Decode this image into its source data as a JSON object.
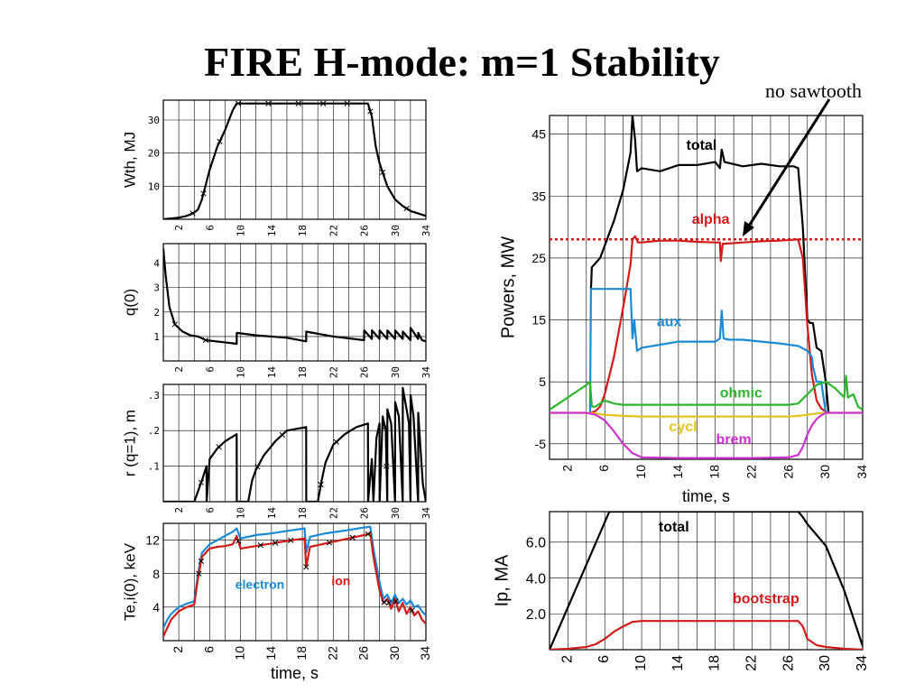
{
  "slide": {
    "title": "FIRE H-mode: m=1 Stability",
    "annotation": "no sawtooth"
  },
  "chart_data": [
    {
      "id": "wth",
      "type": "line",
      "ylabel": "Wth, MJ",
      "xlabel": "",
      "xlim": [
        0,
        34
      ],
      "ylim": [
        0,
        36
      ],
      "xticks": [
        "2",
        "6",
        "10",
        "14",
        "18",
        "22",
        "26",
        "30",
        "34"
      ],
      "yticks": [
        "10",
        "20",
        "30"
      ],
      "grid": true,
      "series": [
        {
          "color": "#000000",
          "x": [
            0,
            2,
            3,
            4,
            4.5,
            5,
            6,
            7,
            8,
            9,
            9.5,
            10,
            12,
            16,
            20,
            24,
            26.5,
            27,
            27.5,
            28,
            29,
            30,
            31,
            32,
            34
          ],
          "y": [
            0,
            0.5,
            1,
            2,
            3,
            6,
            15,
            22,
            27,
            33,
            35,
            35,
            35,
            35,
            35,
            35,
            35,
            31,
            22,
            17,
            10,
            6,
            4,
            2.5,
            1
          ]
        }
      ]
    },
    {
      "id": "q0",
      "type": "line",
      "ylabel": "q(0)",
      "xlabel": "",
      "xlim": [
        0,
        34
      ],
      "ylim": [
        0,
        4.8
      ],
      "xticks": [
        "2",
        "6",
        "10",
        "14",
        "18",
        "22",
        "26",
        "30",
        "34"
      ],
      "yticks": [
        "1",
        "2",
        "3",
        "4"
      ],
      "grid": true,
      "series": [
        {
          "color": "#000000",
          "x": [
            0,
            0.3,
            0.8,
            1.5,
            2.5,
            3.5,
            4.5,
            5.5,
            9.5,
            9.51,
            12,
            16,
            18.5,
            18.51,
            22,
            26,
            26.01,
            27,
            27.01,
            28,
            28.01,
            29,
            29.01,
            30,
            30.01,
            31,
            31.01,
            32,
            32.01,
            33,
            33.01,
            33.5,
            34
          ],
          "y": [
            4.6,
            3.5,
            2.2,
            1.5,
            1.2,
            1.05,
            1.0,
            0.85,
            0.7,
            1.15,
            1.05,
            0.95,
            0.8,
            1.2,
            1.0,
            0.85,
            1.25,
            0.9,
            1.25,
            0.9,
            1.25,
            0.9,
            1.25,
            0.9,
            1.25,
            0.9,
            1.2,
            0.85,
            1.35,
            0.9,
            1.15,
            0.85,
            0.8
          ]
        }
      ]
    },
    {
      "id": "rq1",
      "type": "line",
      "ylabel": "r (q=1), m",
      "xlabel": "",
      "xlim": [
        0,
        34
      ],
      "ylim": [
        0,
        0.33
      ],
      "xticks": [
        "2",
        "6",
        "10",
        "14",
        "18",
        "22",
        "26",
        "30",
        "34"
      ],
      "yticks": [
        ".1",
        ".2",
        ".3"
      ],
      "grid": true,
      "series": [
        {
          "color": "#000000",
          "x": [
            0,
            4,
            4.01,
            5,
            5.6,
            5.61,
            6,
            7,
            8,
            9.5,
            9.51,
            11,
            11.5,
            12,
            13,
            14.5,
            16,
            18.5,
            18.51,
            20,
            20.5,
            21,
            22,
            23.5,
            25,
            26.5,
            26.51,
            27,
            27.2,
            27.6,
            28,
            28.01,
            28.4,
            28.8,
            29,
            29.01,
            29.5,
            30,
            30.01,
            30.5,
            31,
            31.01,
            31.5,
            31.8,
            32,
            32.01,
            32.4,
            33,
            33.01,
            33.3,
            33.6,
            34
          ],
          "y": [
            0,
            0,
            0,
            0.06,
            0.1,
            0,
            0.12,
            0.15,
            0.17,
            0.19,
            0,
            0,
            0.06,
            0.09,
            0.13,
            0.17,
            0.2,
            0.21,
            0,
            0,
            0.06,
            0.11,
            0.16,
            0.19,
            0.21,
            0.22,
            0,
            0.12,
            0,
            0.18,
            0.22,
            0,
            0.24,
            0.2,
            0,
            0.26,
            0.22,
            0,
            0.28,
            0.24,
            0,
            0.32,
            0.26,
            0.22,
            0,
            0.3,
            0.24,
            0,
            0.25,
            0.15,
            0.05,
            0
          ]
        }
      ]
    },
    {
      "id": "te",
      "type": "line",
      "ylabel": "Te,i(0), keV",
      "xlabel": "time, s",
      "xlim": [
        0,
        34
      ],
      "ylim": [
        0,
        14
      ],
      "xticks": [
        "2",
        "6",
        "10",
        "14",
        "18",
        "22",
        "26",
        "30",
        "34"
      ],
      "yticks": [
        "4",
        "8",
        "12"
      ],
      "grid": true,
      "series": [
        {
          "name": "electron",
          "color": "#1a8ad4",
          "x": [
            0,
            0.5,
            1,
            2,
            3,
            4,
            4.5,
            5,
            6,
            7,
            8,
            9,
            9.5,
            10,
            12,
            14,
            16,
            18.3,
            18.5,
            19,
            21,
            24,
            26,
            26.8,
            27.2,
            28,
            28.5,
            29,
            29.5,
            30,
            30.5,
            31,
            31.5,
            32,
            32.5,
            33,
            33.5,
            34
          ],
          "y": [
            1.5,
            2.5,
            3.2,
            4,
            4.4,
            4.7,
            8,
            10.5,
            11.5,
            12,
            12.5,
            13,
            13.4,
            12.2,
            12.6,
            12.8,
            13.1,
            13.4,
            10.5,
            12.4,
            12.8,
            13.2,
            13.5,
            13.6,
            11,
            7,
            5,
            5.5,
            4.5,
            5.5,
            4.5,
            5,
            4.3,
            4.8,
            4,
            4.2,
            3.5,
            3
          ]
        },
        {
          "name": "ion",
          "color": "#d11a1a",
          "x": [
            0,
            0.5,
            1,
            2,
            3,
            4,
            4.5,
            5,
            6,
            7,
            8,
            9,
            9.5,
            10,
            12,
            14,
            16,
            18.3,
            18.5,
            19,
            21,
            24,
            26,
            26.8,
            27.2,
            28,
            28.5,
            29,
            29.5,
            30,
            30.5,
            31,
            31.5,
            32,
            32.5,
            33,
            33.5,
            34
          ],
          "y": [
            0.5,
            1.5,
            2.5,
            3.5,
            4,
            4.3,
            7.5,
            10,
            11,
            11.2,
            11.3,
            11.5,
            12.5,
            11,
            11.3,
            11.6,
            11.9,
            12.2,
            8.8,
            11.2,
            11.6,
            12.2,
            12.6,
            12.8,
            10,
            6,
            4.5,
            5,
            3.8,
            5,
            3.5,
            4.5,
            3.2,
            4,
            3,
            3.5,
            2.5,
            2
          ]
        }
      ]
    },
    {
      "id": "powers",
      "type": "line",
      "ylabel": "Powers, MW",
      "xlabel": "time, s",
      "xlim": [
        0,
        34
      ],
      "ylim": [
        -7.5,
        48
      ],
      "xticks": [
        "2",
        "6",
        "10",
        "14",
        "18",
        "22",
        "26",
        "30",
        "34"
      ],
      "yticks": [
        "-5",
        "5",
        "15",
        "25",
        "35",
        "45"
      ],
      "grid": true,
      "reference_line": {
        "y": 28,
        "color": "#d11a1a",
        "style": "dotted"
      },
      "series": [
        {
          "name": "total",
          "color": "#000000",
          "x": [
            4.5,
            4.6,
            5.5,
            6,
            7,
            8,
            8.8,
            9,
            9.3,
            9.5,
            10,
            12,
            14,
            16,
            18,
            18.5,
            18.7,
            19,
            21,
            23,
            25,
            26.5,
            27,
            27.5,
            28,
            28.3,
            28.6,
            29,
            29.5,
            30,
            30.3
          ],
          "y": [
            20,
            23.5,
            25,
            27,
            31,
            36,
            42,
            48,
            44,
            39,
            39.5,
            39,
            40,
            40,
            40.5,
            39.5,
            42.5,
            40.5,
            39.8,
            40.2,
            39.8,
            39.8,
            39.5,
            30,
            15,
            14.5,
            14.5,
            10.5,
            10,
            5,
            0
          ]
        },
        {
          "name": "alpha",
          "color": "#d11a1a",
          "x": [
            4.5,
            5,
            5.5,
            6,
            7,
            8,
            8.8,
            9,
            9.3,
            9.6,
            10,
            12,
            14,
            16,
            18,
            18.5,
            18.6,
            18.8,
            19,
            21,
            23,
            25,
            27,
            27.5,
            28,
            28.5,
            29,
            29.5,
            30,
            30.5
          ],
          "y": [
            0,
            0.3,
            1,
            3,
            9,
            17,
            24,
            28,
            28.5,
            27.5,
            27.5,
            27.8,
            27.8,
            27.6,
            27.5,
            27.5,
            24.5,
            27.3,
            27.3,
            27.5,
            27.7,
            27.8,
            28,
            25,
            14,
            6,
            2,
            0.7,
            0.2,
            0
          ]
        },
        {
          "name": "aux",
          "color": "#1a8ad4",
          "x": [
            4.4,
            4.5,
            8.8,
            9,
            9.2,
            9.5,
            10,
            12,
            14,
            16,
            18,
            18.5,
            18.7,
            18.9,
            19.5,
            21,
            23,
            25,
            27,
            28,
            28.5,
            28.6,
            29,
            29.5,
            30
          ],
          "y": [
            0,
            20,
            20,
            12,
            15,
            10,
            10.5,
            11,
            11.5,
            11.5,
            11.5,
            12,
            16.5,
            12,
            11.8,
            11.8,
            11.5,
            11.2,
            10.8,
            10,
            9,
            7.5,
            5,
            5,
            0
          ]
        },
        {
          "name": "ohmic",
          "color": "#2db52d",
          "x": [
            0,
            1,
            2,
            3,
            4,
            4.4,
            4.6,
            5,
            6,
            7,
            8,
            9,
            10,
            14,
            18,
            22,
            26,
            27,
            28,
            29,
            30,
            31,
            32,
            32.2,
            32.4,
            33,
            33.5,
            34
          ],
          "y": [
            0.5,
            1.5,
            2.5,
            3.5,
            4.5,
            5,
            1,
            1,
            2,
            1.5,
            1.3,
            1.3,
            1.3,
            1.3,
            1.3,
            1.3,
            1.3,
            1.5,
            3,
            4.5,
            5,
            4,
            2.5,
            6,
            2.5,
            3,
            1,
            0.5
          ]
        },
        {
          "name": "cycl",
          "color": "#e5c41a",
          "x": [
            0,
            4,
            5,
            6,
            8,
            10,
            14,
            18,
            22,
            26,
            27,
            28,
            29,
            30,
            34
          ],
          "y": [
            0,
            0,
            -0.1,
            -0.3,
            -0.5,
            -0.6,
            -0.6,
            -0.6,
            -0.6,
            -0.6,
            -0.5,
            -0.3,
            -0.1,
            0,
            0
          ]
        },
        {
          "name": "brem",
          "color": "#cc33cc",
          "x": [
            0,
            4,
            5,
            6,
            7,
            8,
            9,
            10,
            14,
            18,
            22,
            26,
            27,
            27.5,
            28,
            28.5,
            29,
            29.5,
            30,
            34
          ],
          "y": [
            0,
            0,
            -0.3,
            -1.2,
            -3,
            -5,
            -6.5,
            -7.2,
            -7.3,
            -7.3,
            -7.3,
            -7.2,
            -6.8,
            -5.5,
            -3.5,
            -2,
            -1,
            -0.4,
            0,
            0
          ]
        }
      ]
    },
    {
      "id": "ip",
      "type": "line",
      "ylabel": "Ip, MA",
      "xlabel": "",
      "xlim": [
        0,
        34
      ],
      "ylim": [
        0,
        7.7
      ],
      "xticks": [
        "2",
        "6",
        "10",
        "14",
        "18",
        "22",
        "26",
        "30",
        "34"
      ],
      "yticks": [
        "2.0",
        "4.0",
        "6.0"
      ],
      "grid": true,
      "series": [
        {
          "name": "total",
          "color": "#000000",
          "x": [
            0,
            6.5,
            7,
            10,
            14,
            18,
            22,
            26,
            27,
            27.5,
            28,
            30,
            32,
            34
          ],
          "y": [
            0,
            7.7,
            7.7,
            7.7,
            7.7,
            7.7,
            7.7,
            7.7,
            7.7,
            7.4,
            7.0,
            5.8,
            3.3,
            0.2
          ]
        },
        {
          "name": "bootstrap",
          "color": "#d11a1a",
          "x": [
            0,
            2,
            4,
            5,
            6,
            7,
            8,
            9,
            10,
            14,
            18,
            22,
            26,
            27,
            27.5,
            28,
            29,
            30,
            32,
            34
          ],
          "y": [
            0,
            0.05,
            0.15,
            0.3,
            0.6,
            1,
            1.3,
            1.55,
            1.6,
            1.6,
            1.6,
            1.6,
            1.6,
            1.6,
            1.3,
            0.6,
            0.25,
            0.15,
            0.05,
            0
          ]
        }
      ]
    }
  ]
}
